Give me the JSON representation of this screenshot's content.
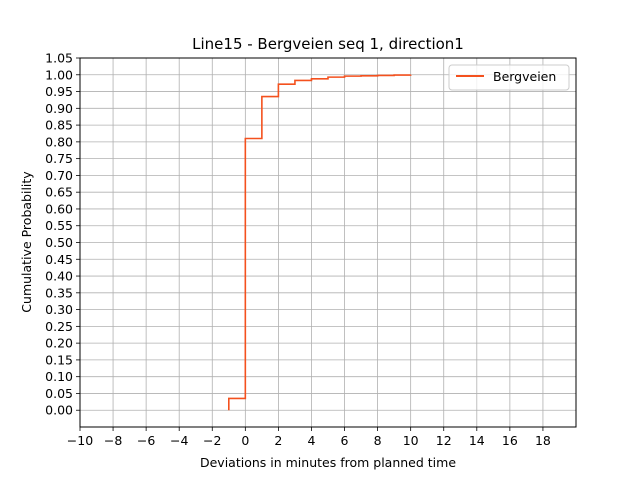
{
  "chart_data": {
    "type": "line",
    "step": "post",
    "title": "Line15 - Bergveien seq 1, direction1",
    "xlabel": "Deviations in minutes from planned time",
    "ylabel": "Cumulative Probability",
    "xlim": [
      -10,
      20
    ],
    "ylim": [
      -0.05,
      1.05
    ],
    "xticks": [
      -10,
      -8,
      -6,
      -4,
      -2,
      0,
      2,
      4,
      6,
      8,
      10,
      12,
      14,
      16,
      18
    ],
    "xtick_labels": [
      "−10",
      "−8",
      "−6",
      "−4",
      "−2",
      "0",
      "2",
      "4",
      "6",
      "8",
      "10",
      "12",
      "14",
      "16",
      "18"
    ],
    "yticks": [
      0.0,
      0.05,
      0.1,
      0.15,
      0.2,
      0.25,
      0.3,
      0.35,
      0.4,
      0.45,
      0.5,
      0.55,
      0.6,
      0.65,
      0.7,
      0.75,
      0.8,
      0.85,
      0.9,
      0.95,
      1.0,
      1.05
    ],
    "ytick_labels": [
      "0.00",
      "0.05",
      "0.10",
      "0.15",
      "0.20",
      "0.25",
      "0.30",
      "0.35",
      "0.40",
      "0.45",
      "0.50",
      "0.55",
      "0.60",
      "0.65",
      "0.70",
      "0.75",
      "0.80",
      "0.85",
      "0.90",
      "0.95",
      "1.00",
      "1.05"
    ],
    "grid": true,
    "legend_position": "top-right",
    "series": [
      {
        "name": "Bergveien",
        "color": "#f4511e",
        "x": [
          -1,
          -1,
          0,
          1,
          2,
          3,
          4,
          5,
          6,
          7,
          8,
          9,
          10
        ],
        "y": [
          0.0,
          0.035,
          0.81,
          0.935,
          0.972,
          0.983,
          0.988,
          0.993,
          0.996,
          0.997,
          0.998,
          0.999,
          1.0
        ]
      }
    ]
  }
}
